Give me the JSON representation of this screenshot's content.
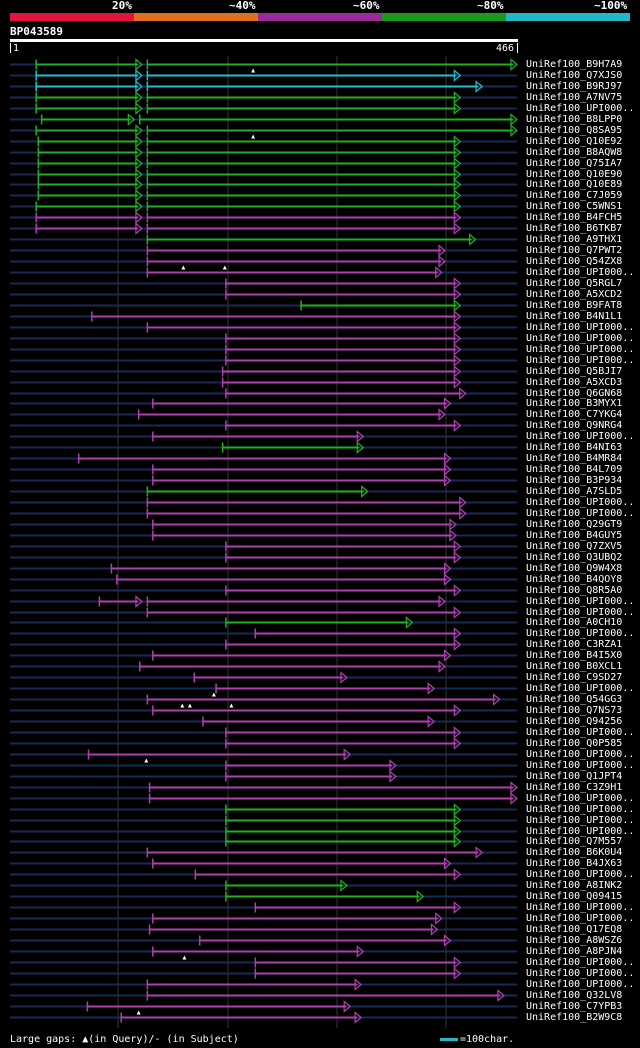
{
  "legend": {
    "segments": [
      {
        "color": "#e0143c"
      },
      {
        "color": "#e07020"
      },
      {
        "color": "#9a2a9a"
      },
      {
        "color": "#1a9a1a"
      },
      {
        "color": "#22b8c8"
      }
    ],
    "labels": [
      "20%",
      "~40%",
      "~60%",
      "~80%",
      "~100%"
    ]
  },
  "query": {
    "id": "BP043589",
    "start": "1",
    "end": "466",
    "length": 466
  },
  "colors": {
    "green": "#22b022",
    "magenta": "#b040b0",
    "cyan": "#22c0d0",
    "track": "#1a2a55"
  },
  "footer": {
    "gaps": "Large gaps: ▲(in Query)/- (in Subject)",
    "scale": "=100char."
  },
  "hits": [
    {
      "label": "UniRef100_B9H7A9",
      "color": "green",
      "segs": [
        [
          25,
          122
        ],
        [
          127,
          466
        ]
      ],
      "marks": [
        224
      ]
    },
    {
      "label": "UniRef100_Q7XJS0",
      "color": "cyan",
      "segs": [
        [
          25,
          122
        ],
        [
          127,
          414
        ]
      ]
    },
    {
      "label": "UniRef100_B9RJ97",
      "color": "cyan",
      "segs": [
        [
          25,
          122
        ],
        [
          127,
          434
        ]
      ]
    },
    {
      "label": "UniRef100_A7NV75",
      "color": "green",
      "segs": [
        [
          25,
          122
        ],
        [
          127,
          414
        ]
      ]
    },
    {
      "label": "UniRef100_UPI000..",
      "color": "green",
      "segs": [
        [
          25,
          122
        ],
        [
          127,
          414
        ]
      ]
    },
    {
      "label": "UniRef100_B8LPP0",
      "color": "green",
      "segs": [
        [
          30,
          115
        ],
        [
          120,
          466
        ]
      ]
    },
    {
      "label": "UniRef100_Q8SA95",
      "color": "green",
      "segs": [
        [
          25,
          122
        ],
        [
          127,
          466
        ]
      ],
      "marks": [
        224
      ]
    },
    {
      "label": "UniRef100_Q10E92",
      "color": "green",
      "segs": [
        [
          27,
          122
        ],
        [
          127,
          414
        ]
      ]
    },
    {
      "label": "UniRef100_B8AQW8",
      "color": "green",
      "segs": [
        [
          27,
          122
        ],
        [
          127,
          414
        ]
      ]
    },
    {
      "label": "UniRef100_Q75IA7",
      "color": "green",
      "segs": [
        [
          27,
          122
        ],
        [
          127,
          414
        ]
      ]
    },
    {
      "label": "UniRef100_Q10E90",
      "color": "green",
      "segs": [
        [
          27,
          122
        ],
        [
          127,
          414
        ]
      ]
    },
    {
      "label": "UniRef100_Q10E89",
      "color": "green",
      "segs": [
        [
          27,
          122
        ],
        [
          127,
          414
        ]
      ]
    },
    {
      "label": "UniRef100_C7J059",
      "color": "green",
      "segs": [
        [
          27,
          122
        ],
        [
          127,
          414
        ]
      ]
    },
    {
      "label": "UniRef100_C5WNS1",
      "color": "green",
      "segs": [
        [
          25,
          122
        ],
        [
          127,
          414
        ]
      ]
    },
    {
      "label": "UniRef100_B4FCH5",
      "color": "magenta",
      "segs": [
        [
          25,
          122
        ],
        [
          127,
          414
        ]
      ]
    },
    {
      "label": "UniRef100_B6TKB7",
      "color": "magenta",
      "segs": [
        [
          25,
          122
        ],
        [
          127,
          414
        ]
      ]
    },
    {
      "label": "UniRef100_A9THX1",
      "color": "green",
      "segs": [
        [
          127,
          428
        ]
      ]
    },
    {
      "label": "UniRef100_Q7PWT2",
      "color": "magenta",
      "segs": [
        [
          127,
          400
        ]
      ]
    },
    {
      "label": "UniRef100_Q54ZX8",
      "color": "magenta",
      "segs": [
        [
          127,
          400
        ]
      ],
      "marks": [
        160,
        198
      ]
    },
    {
      "label": "UniRef100_UPI000..",
      "color": "magenta",
      "segs": [
        [
          127,
          397
        ]
      ]
    },
    {
      "label": "UniRef100_Q5RGL7",
      "color": "magenta",
      "segs": [
        [
          199,
          414
        ]
      ]
    },
    {
      "label": "UniRef100_A5XCD2",
      "color": "magenta",
      "segs": [
        [
          199,
          414
        ]
      ]
    },
    {
      "label": "UniRef100_B9FAT8",
      "color": "green",
      "segs": [
        [
          268,
          414
        ]
      ]
    },
    {
      "label": "UniRef100_B4N1L1",
      "color": "magenta",
      "segs": [
        [
          76,
          414
        ]
      ]
    },
    {
      "label": "UniRef100_UPI000..",
      "color": "magenta",
      "segs": [
        [
          127,
          414
        ]
      ]
    },
    {
      "label": "UniRef100_UPI000..",
      "color": "magenta",
      "segs": [
        [
          199,
          414
        ]
      ]
    },
    {
      "label": "UniRef100_UPI000..",
      "color": "magenta",
      "segs": [
        [
          199,
          414
        ]
      ]
    },
    {
      "label": "UniRef100_UPI000..",
      "color": "magenta",
      "segs": [
        [
          199,
          414
        ]
      ]
    },
    {
      "label": "UniRef100_Q5BJI7",
      "color": "magenta",
      "segs": [
        [
          196,
          414
        ]
      ]
    },
    {
      "label": "UniRef100_A5XCD3",
      "color": "magenta",
      "segs": [
        [
          196,
          414
        ]
      ]
    },
    {
      "label": "UniRef100_Q6GN68",
      "color": "magenta",
      "segs": [
        [
          199,
          419
        ]
      ]
    },
    {
      "label": "UniRef100_B3MYX1",
      "color": "magenta",
      "segs": [
        [
          132,
          405
        ]
      ]
    },
    {
      "label": "UniRef100_C7YKG4",
      "color": "magenta",
      "segs": [
        [
          119,
          400
        ]
      ]
    },
    {
      "label": "UniRef100_Q9NRG4",
      "color": "magenta",
      "segs": [
        [
          199,
          414
        ]
      ]
    },
    {
      "label": "UniRef100_UPI000..",
      "color": "magenta",
      "segs": [
        [
          132,
          325
        ]
      ]
    },
    {
      "label": "UniRef100_B4NI63",
      "color": "green",
      "segs": [
        [
          196,
          325
        ]
      ]
    },
    {
      "label": "UniRef100_B4MR84",
      "color": "magenta",
      "segs": [
        [
          64,
          405
        ]
      ]
    },
    {
      "label": "UniRef100_B4L709",
      "color": "magenta",
      "segs": [
        [
          132,
          405
        ]
      ]
    },
    {
      "label": "UniRef100_B3P934",
      "color": "magenta",
      "segs": [
        [
          132,
          405
        ]
      ]
    },
    {
      "label": "UniRef100_A7SLD5",
      "color": "green",
      "segs": [
        [
          127,
          329
        ]
      ]
    },
    {
      "label": "UniRef100_UPI000..",
      "color": "magenta",
      "segs": [
        [
          127,
          419
        ]
      ]
    },
    {
      "label": "UniRef100_UPI000..",
      "color": "magenta",
      "segs": [
        [
          127,
          419
        ]
      ]
    },
    {
      "label": "UniRef100_Q29GT9",
      "color": "magenta",
      "segs": [
        [
          132,
          410
        ]
      ]
    },
    {
      "label": "UniRef100_B4GUY5",
      "color": "magenta",
      "segs": [
        [
          132,
          410
        ]
      ]
    },
    {
      "label": "UniRef100_Q7ZXV5",
      "color": "magenta",
      "segs": [
        [
          199,
          414
        ]
      ]
    },
    {
      "label": "UniRef100_Q3UBQ2",
      "color": "magenta",
      "segs": [
        [
          199,
          414
        ]
      ]
    },
    {
      "label": "UniRef100_Q9W4X8",
      "color": "magenta",
      "segs": [
        [
          94,
          405
        ]
      ]
    },
    {
      "label": "UniRef100_B4QOY8",
      "color": "magenta",
      "segs": [
        [
          99,
          405
        ]
      ]
    },
    {
      "label": "UniRef100_Q8R5A0",
      "color": "magenta",
      "segs": [
        [
          199,
          414
        ]
      ]
    },
    {
      "label": "UniRef100_UPI000..",
      "color": "magenta",
      "segs": [
        [
          83,
          122
        ],
        [
          127,
          400
        ]
      ]
    },
    {
      "label": "UniRef100_UPI000..",
      "color": "magenta",
      "segs": [
        [
          127,
          414
        ]
      ]
    },
    {
      "label": "UniRef100_A0CH10",
      "color": "green",
      "segs": [
        [
          199,
          370
        ]
      ]
    },
    {
      "label": "UniRef100_UPI000..",
      "color": "magenta",
      "segs": [
        [
          226,
          414
        ]
      ]
    },
    {
      "label": "UniRef100_C3RZA1",
      "color": "magenta",
      "segs": [
        [
          199,
          414
        ]
      ]
    },
    {
      "label": "UniRef100_B4I5X0",
      "color": "magenta",
      "segs": [
        [
          132,
          405
        ]
      ]
    },
    {
      "label": "UniRef100_B0XCL1",
      "color": "magenta",
      "segs": [
        [
          120,
          400
        ]
      ]
    },
    {
      "label": "UniRef100_C9SD27",
      "color": "magenta",
      "segs": [
        [
          170,
          310
        ]
      ]
    },
    {
      "label": "UniRef100_UPI000..",
      "color": "magenta",
      "segs": [
        [
          190,
          390
        ]
      ],
      "marks": [
        188
      ]
    },
    {
      "label": "UniRef100_Q54GG3",
      "color": "magenta",
      "segs": [
        [
          127,
          450
        ]
      ],
      "marks": [
        159,
        166,
        204
      ]
    },
    {
      "label": "UniRef100_Q7NS73",
      "color": "magenta",
      "segs": [
        [
          132,
          414
        ]
      ]
    },
    {
      "label": "UniRef100_Q94256",
      "color": "magenta",
      "segs": [
        [
          178,
          390
        ]
      ]
    },
    {
      "label": "UniRef100_UPI000..",
      "color": "magenta",
      "segs": [
        [
          199,
          414
        ]
      ]
    },
    {
      "label": "UniRef100_Q0P585",
      "color": "magenta",
      "segs": [
        [
          199,
          414
        ]
      ]
    },
    {
      "label": "UniRef100_UPI000..",
      "color": "magenta",
      "segs": [
        [
          73,
          313
        ]
      ],
      "marks": [
        126
      ]
    },
    {
      "label": "UniRef100_UPI000..",
      "color": "magenta",
      "segs": [
        [
          199,
          355
        ]
      ]
    },
    {
      "label": "UniRef100_Q1JPT4",
      "color": "magenta",
      "segs": [
        [
          199,
          355
        ]
      ]
    },
    {
      "label": "UniRef100_C3Z9H1",
      "color": "magenta",
      "segs": [
        [
          129,
          466
        ]
      ]
    },
    {
      "label": "UniRef100_UPI000..",
      "color": "magenta",
      "segs": [
        [
          129,
          466
        ]
      ]
    },
    {
      "label": "UniRef100_UPI000..",
      "color": "green",
      "segs": [
        [
          199,
          414
        ]
      ]
    },
    {
      "label": "UniRef100_UPI000..",
      "color": "green",
      "segs": [
        [
          199,
          414
        ]
      ]
    },
    {
      "label": "UniRef100_UPI000..",
      "color": "green",
      "segs": [
        [
          199,
          414
        ]
      ]
    },
    {
      "label": "UniRef100_Q7M557",
      "color": "green",
      "segs": [
        [
          199,
          414
        ]
      ]
    },
    {
      "label": "UniRef100_B6K0U4",
      "color": "magenta",
      "segs": [
        [
          127,
          434
        ]
      ]
    },
    {
      "label": "UniRef100_B4JX63",
      "color": "magenta",
      "segs": [
        [
          132,
          405
        ]
      ]
    },
    {
      "label": "UniRef100_UPI000..",
      "color": "magenta",
      "segs": [
        [
          171,
          414
        ]
      ]
    },
    {
      "label": "UniRef100_A8INK2",
      "color": "green",
      "segs": [
        [
          199,
          310
        ]
      ]
    },
    {
      "label": "UniRef100_Q09415",
      "color": "green",
      "segs": [
        [
          199,
          380
        ]
      ]
    },
    {
      "label": "UniRef100_UPI000..",
      "color": "magenta",
      "segs": [
        [
          226,
          414
        ]
      ]
    },
    {
      "label": "UniRef100_UPI000..",
      "color": "magenta",
      "segs": [
        [
          132,
          397
        ]
      ]
    },
    {
      "label": "UniRef100_Q17EQ8",
      "color": "magenta",
      "segs": [
        [
          129,
          393
        ]
      ]
    },
    {
      "label": "UniRef100_A8WSZ6",
      "color": "magenta",
      "segs": [
        [
          175,
          405
        ]
      ]
    },
    {
      "label": "UniRef100_A8PJN4",
      "color": "magenta",
      "segs": [
        [
          132,
          325
        ]
      ],
      "marks": [
        161
      ]
    },
    {
      "label": "UniRef100_UPI000..",
      "color": "magenta",
      "segs": [
        [
          226,
          414
        ]
      ]
    },
    {
      "label": "UniRef100_UPI000..",
      "color": "magenta",
      "segs": [
        [
          226,
          414
        ]
      ]
    },
    {
      "label": "UniRef100_UPI000..",
      "color": "magenta",
      "segs": [
        [
          127,
          323
        ]
      ]
    },
    {
      "label": "UniRef100_Q32LV8",
      "color": "magenta",
      "segs": [
        [
          127,
          454
        ]
      ]
    },
    {
      "label": "UniRef100_C7YPB3",
      "color": "magenta",
      "segs": [
        [
          72,
          313
        ]
      ],
      "marks": [
        119
      ]
    },
    {
      "label": "UniRef100_B2W9C8",
      "color": "magenta",
      "segs": [
        [
          103,
          323
        ]
      ]
    }
  ]
}
